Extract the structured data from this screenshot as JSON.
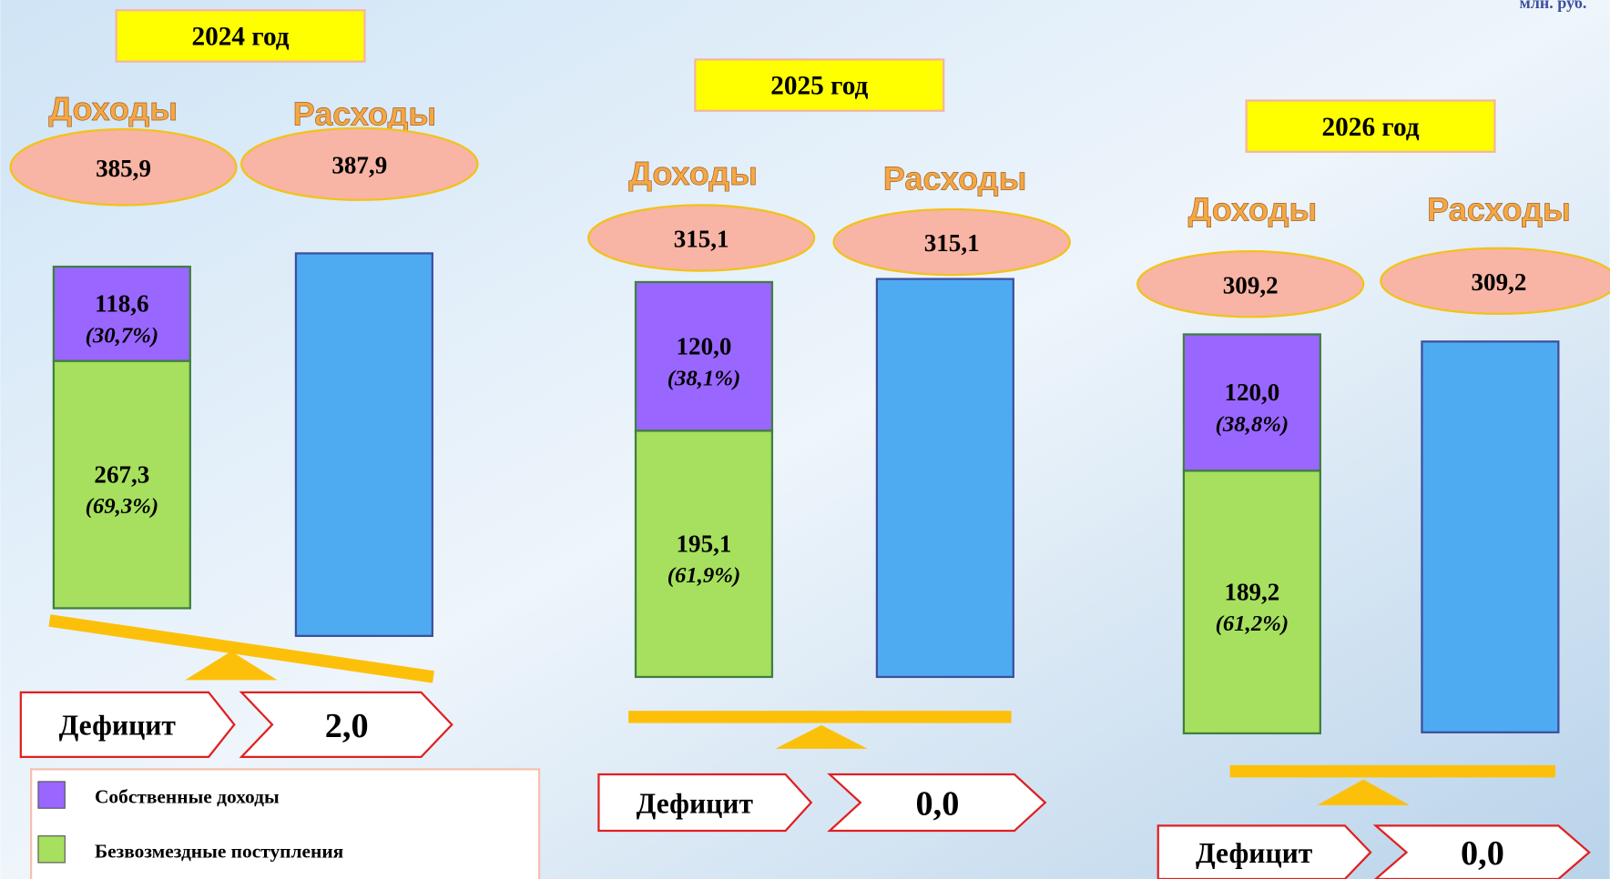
{
  "unit_label": "млн. руб.",
  "years": [
    {
      "title": "2024 год",
      "income_label": "Доходы",
      "income": "385,9",
      "expense_label": "Расходы",
      "expense": "387,9",
      "own": "118,6",
      "own_share": "(30,7%)",
      "grants": "267,3",
      "grants_share": "(69,3%)",
      "deficit_label": "Дефицит",
      "deficit": "2,0"
    },
    {
      "title": "2025 год",
      "income_label": "Доходы",
      "income": "315,1",
      "expense_label": "Расходы",
      "expense": "315,1",
      "own": "120,0",
      "own_share": "(38,1%)",
      "grants": "195,1",
      "grants_share": "(61,9%)",
      "deficit_label": "Дефицит",
      "deficit": "0,0"
    },
    {
      "title": "2026 год",
      "income_label": "Доходы",
      "income": "309,2",
      "expense_label": "Расходы",
      "expense": "309,2",
      "own": "120,0",
      "own_share": "(38,8%)",
      "grants": "189,2",
      "grants_share": "(61,2%)",
      "deficit_label": "Дефицит",
      "deficit": "0,0"
    }
  ],
  "legend": [
    "Собственные доходы",
    "Безвозмездные поступления"
  ]
}
